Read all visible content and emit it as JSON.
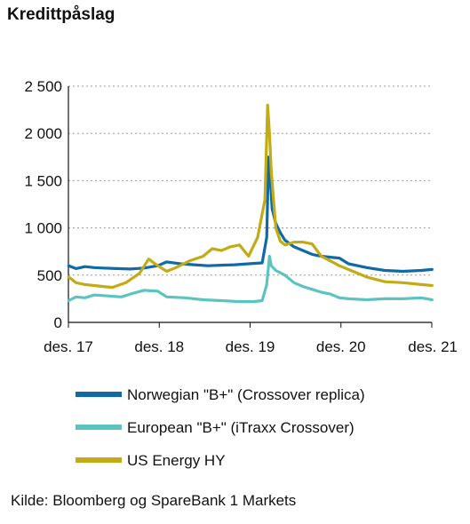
{
  "title": "Kredittpåslag",
  "source": "Kilde: Bloomberg og SpareBank 1 Markets",
  "chart_data": {
    "type": "line",
    "ylim": [
      0,
      2500
    ],
    "xlim": [
      2017.917,
      2021.917
    ],
    "grid": true,
    "legend_position": "bottom",
    "y_ticks": [
      {
        "value": 0,
        "label": "0"
      },
      {
        "value": 500,
        "label": "500"
      },
      {
        "value": 1000,
        "label": "1 000"
      },
      {
        "value": 1500,
        "label": "1 500"
      },
      {
        "value": 2000,
        "label": "2 000"
      },
      {
        "value": 2500,
        "label": "2 500"
      }
    ],
    "x_ticks": [
      {
        "value": 2017.917,
        "label": "des. 17"
      },
      {
        "value": 2018.917,
        "label": "des. 18"
      },
      {
        "value": 2019.917,
        "label": "des. 19"
      },
      {
        "value": 2020.917,
        "label": "des. 20"
      },
      {
        "value": 2021.917,
        "label": "des. 21"
      }
    ],
    "series": [
      {
        "name": "Norwegian \"B+\" (Crossover replica)",
        "color": "#0f6aa6",
        "x": [
          2017.92,
          2018.0,
          2018.1,
          2018.2,
          2018.3,
          2018.45,
          2018.6,
          2018.75,
          2018.9,
          2019.0,
          2019.15,
          2019.3,
          2019.45,
          2019.6,
          2019.75,
          2019.9,
          2020.05,
          2020.1,
          2020.12,
          2020.14,
          2020.16,
          2020.2,
          2020.25,
          2020.3,
          2020.4,
          2020.5,
          2020.6,
          2020.7,
          2020.8,
          2020.9,
          2021.0,
          2021.2,
          2021.4,
          2021.6,
          2021.8,
          2021.92
        ],
        "values": [
          600,
          570,
          590,
          580,
          575,
          570,
          565,
          575,
          600,
          640,
          620,
          610,
          600,
          605,
          610,
          620,
          630,
          900,
          1750,
          1500,
          1200,
          1050,
          950,
          870,
          800,
          760,
          720,
          700,
          690,
          680,
          620,
          580,
          550,
          540,
          550,
          560
        ]
      },
      {
        "name": "European \"B+\" (iTraxx Crossover)",
        "color": "#5cc4c0",
        "x": [
          2017.92,
          2018.0,
          2018.1,
          2018.2,
          2018.35,
          2018.5,
          2018.6,
          2018.75,
          2018.9,
          2019.0,
          2019.2,
          2019.4,
          2019.6,
          2019.8,
          2019.95,
          2020.05,
          2020.1,
          2020.13,
          2020.15,
          2020.2,
          2020.3,
          2020.4,
          2020.5,
          2020.6,
          2020.7,
          2020.8,
          2020.9,
          2021.0,
          2021.2,
          2021.4,
          2021.6,
          2021.8,
          2021.92
        ],
        "values": [
          230,
          270,
          260,
          290,
          280,
          270,
          300,
          340,
          330,
          270,
          260,
          240,
          230,
          220,
          220,
          230,
          400,
          700,
          600,
          550,
          500,
          420,
          380,
          350,
          320,
          300,
          260,
          250,
          240,
          250,
          250,
          260,
          240
        ]
      },
      {
        "name": "US Energy HY",
        "color": "#c2ab14",
        "x": [
          2017.92,
          2018.0,
          2018.1,
          2018.2,
          2018.3,
          2018.4,
          2018.55,
          2018.7,
          2018.8,
          2018.9,
          2019.0,
          2019.1,
          2019.25,
          2019.4,
          2019.5,
          2019.6,
          2019.7,
          2019.8,
          2019.9,
          2020.0,
          2020.08,
          2020.11,
          2020.13,
          2020.15,
          2020.2,
          2020.25,
          2020.3,
          2020.4,
          2020.5,
          2020.6,
          2020.7,
          2020.8,
          2020.9,
          2021.0,
          2021.2,
          2021.4,
          2021.6,
          2021.8,
          2021.92
        ],
        "values": [
          480,
          420,
          400,
          390,
          380,
          370,
          420,
          520,
          670,
          600,
          540,
          580,
          650,
          700,
          780,
          760,
          800,
          820,
          700,
          900,
          1300,
          2300,
          2000,
          1600,
          1000,
          860,
          820,
          850,
          850,
          830,
          700,
          650,
          600,
          560,
          480,
          430,
          420,
          400,
          390
        ]
      }
    ]
  }
}
